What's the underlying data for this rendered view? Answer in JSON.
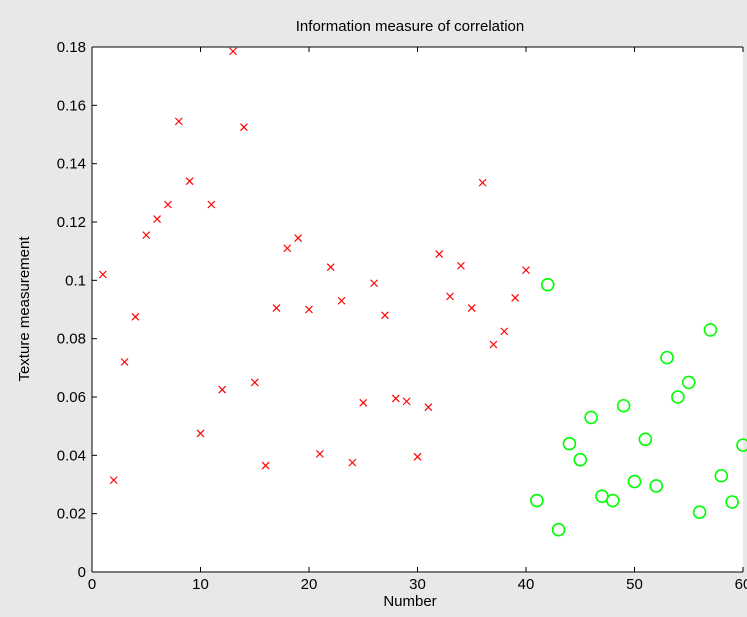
{
  "chart_data": {
    "type": "scatter",
    "title": "Information measure of correlation",
    "xlabel": "Number",
    "ylabel": "Texture measurement",
    "xlim": [
      0,
      60
    ],
    "ylim": [
      0,
      0.18
    ],
    "xticks": [
      0,
      10,
      20,
      30,
      40,
      50,
      60
    ],
    "yticks": [
      0,
      0.02,
      0.04,
      0.06,
      0.08,
      0.1,
      0.12,
      0.14,
      0.16,
      0.18
    ],
    "ytick_labels": [
      "0",
      "0.02",
      "0.04",
      "0.06",
      "0.08",
      "0.1",
      "0.12",
      "0.14",
      "0.16",
      "0.18"
    ],
    "grid": false,
    "background": "#ffffff",
    "figure_background": "#e8e8e8",
    "series": [
      {
        "marker": "x",
        "color": "#ff0000",
        "x": [
          1,
          2,
          3,
          4,
          5,
          6,
          7,
          8,
          9,
          10,
          11,
          12,
          13,
          14,
          15,
          16,
          17,
          18,
          19,
          20,
          21,
          22,
          23,
          24,
          25,
          26,
          27,
          28,
          29,
          30,
          31,
          32,
          33,
          34,
          35,
          36,
          37,
          38,
          39,
          40
        ],
        "y": [
          0.102,
          0.0315,
          0.072,
          0.0875,
          0.1155,
          0.121,
          0.126,
          0.1545,
          0.134,
          0.0475,
          0.126,
          0.0625,
          0.1785,
          0.1525,
          0.065,
          0.0365,
          0.0905,
          0.111,
          0.1145,
          0.09,
          0.0405,
          0.1045,
          0.093,
          0.0375,
          0.058,
          0.099,
          0.088,
          0.0595,
          0.0585,
          0.0395,
          0.0565,
          0.109,
          0.0945,
          0.105,
          0.0905,
          0.1335,
          0.078,
          0.0825,
          0.094,
          0.1035
        ]
      },
      {
        "marker": "o",
        "color": "#00ff00",
        "x": [
          41,
          42,
          43,
          44,
          45,
          46,
          47,
          48,
          49,
          50,
          51,
          52,
          53,
          54,
          55,
          56,
          57,
          58,
          59,
          60
        ],
        "y": [
          0.0245,
          0.0985,
          0.0145,
          0.044,
          0.0385,
          0.053,
          0.026,
          0.0245,
          0.057,
          0.031,
          0.0455,
          0.0295,
          0.0735,
          0.06,
          0.065,
          0.0205,
          0.083,
          0.033,
          0.024,
          0.0435
        ]
      }
    ]
  }
}
